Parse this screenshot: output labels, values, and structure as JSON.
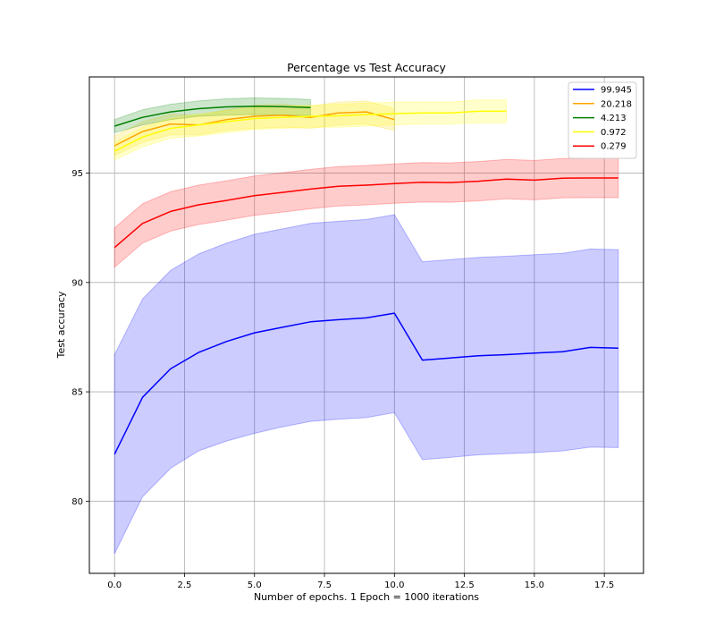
{
  "chart_data": {
    "type": "line",
    "title": "Percentage vs Test Accuracy",
    "xlabel": "Number of epochs. 1 Epoch = 1000 iterations",
    "ylabel": "Test accuracy",
    "xlim": [
      -0.9,
      18.9
    ],
    "ylim": [
      76.7,
      99.4
    ],
    "xticks": [
      0,
      2.5,
      5,
      7.5,
      10,
      12.5,
      15,
      17.5
    ],
    "xtick_labels": [
      "0.0",
      "2.5",
      "5.0",
      "7.5",
      "10.0",
      "12.5",
      "15.0",
      "17.5"
    ],
    "yticks": [
      80,
      85,
      90,
      95
    ],
    "ytick_labels": [
      "80",
      "85",
      "90",
      "95"
    ],
    "grid": true,
    "legend_position": "top-right",
    "series": [
      {
        "name": "99.945",
        "color": "#0000ff",
        "band_color": "#0000ff",
        "x": [
          0,
          1,
          2,
          3,
          4,
          5,
          6,
          7,
          8,
          9,
          10,
          11,
          12,
          13,
          14,
          15,
          16,
          17,
          18
        ],
        "values": [
          82.15,
          84.75,
          86.05,
          86.8,
          87.3,
          87.7,
          87.95,
          88.2,
          88.3,
          88.38,
          88.6,
          86.45,
          86.55,
          86.65,
          86.7,
          86.77,
          86.83,
          87.03,
          87.0
        ],
        "lower": [
          77.6,
          80.2,
          81.5,
          82.3,
          82.75,
          83.1,
          83.4,
          83.65,
          83.75,
          83.82,
          84.05,
          81.9,
          82.0,
          82.12,
          82.17,
          82.22,
          82.3,
          82.47,
          82.45
        ],
        "upper": [
          86.7,
          89.25,
          90.55,
          91.3,
          91.8,
          92.2,
          92.45,
          92.7,
          92.8,
          92.88,
          93.1,
          90.95,
          91.05,
          91.15,
          91.2,
          91.27,
          91.33,
          91.53,
          91.5
        ]
      },
      {
        "name": "20.218",
        "color": "#ffa500",
        "band_color": "#ffd700",
        "x": [
          0,
          1,
          2,
          3,
          4,
          5,
          6,
          7,
          8,
          9,
          10
        ],
        "values": [
          96.25,
          96.9,
          97.25,
          97.2,
          97.45,
          97.6,
          97.65,
          97.55,
          97.75,
          97.8,
          97.45
        ],
        "lower": [
          95.8,
          96.4,
          96.75,
          96.75,
          96.95,
          97.05,
          97.1,
          97.05,
          97.2,
          97.25,
          96.95
        ],
        "upper": [
          96.7,
          97.35,
          97.7,
          97.65,
          97.9,
          98.1,
          98.15,
          98.05,
          98.25,
          98.3,
          97.95
        ]
      },
      {
        "name": "4.213",
        "color": "#008000",
        "band_color": "#008000",
        "x": [
          0,
          1,
          2,
          3,
          4,
          5,
          6,
          7
        ],
        "values": [
          97.15,
          97.55,
          97.8,
          97.95,
          98.03,
          98.06,
          98.04,
          98.0
        ],
        "lower": [
          96.85,
          97.2,
          97.45,
          97.6,
          97.65,
          97.68,
          97.66,
          97.63
        ],
        "upper": [
          97.45,
          97.9,
          98.15,
          98.3,
          98.4,
          98.44,
          98.42,
          98.37
        ]
      },
      {
        "name": "0.972",
        "color": "#ffff00",
        "band_color": "#ffff00",
        "x": [
          0,
          1,
          2,
          3,
          4,
          5,
          6,
          7,
          8,
          9,
          10,
          11,
          12,
          13,
          14
        ],
        "values": [
          96.0,
          96.65,
          97.05,
          97.2,
          97.35,
          97.5,
          97.55,
          97.6,
          97.62,
          97.68,
          97.72,
          97.75,
          97.75,
          97.83,
          97.83
        ],
        "lower": [
          95.6,
          96.2,
          96.6,
          96.7,
          96.85,
          97.0,
          97.05,
          97.1,
          97.1,
          97.15,
          97.2,
          97.25,
          97.25,
          97.3,
          97.3
        ],
        "upper": [
          96.4,
          97.1,
          97.5,
          97.7,
          97.85,
          98.0,
          98.05,
          98.1,
          98.15,
          98.2,
          98.25,
          98.25,
          98.25,
          98.35,
          98.35
        ]
      },
      {
        "name": "0.279",
        "color": "#ff0000",
        "band_color": "#ff0000",
        "x": [
          0,
          1,
          2,
          3,
          4,
          5,
          6,
          7,
          8,
          9,
          10,
          11,
          12,
          13,
          14,
          15,
          16,
          17,
          18
        ],
        "values": [
          91.6,
          92.7,
          93.25,
          93.55,
          93.75,
          93.97,
          94.12,
          94.27,
          94.4,
          94.45,
          94.52,
          94.58,
          94.57,
          94.63,
          94.73,
          94.68,
          94.77,
          94.78,
          94.78
        ],
        "lower": [
          90.7,
          91.8,
          92.35,
          92.65,
          92.85,
          93.07,
          93.22,
          93.37,
          93.5,
          93.55,
          93.62,
          93.68,
          93.67,
          93.73,
          93.83,
          93.78,
          93.87,
          93.88,
          93.88
        ],
        "upper": [
          92.5,
          93.6,
          94.15,
          94.45,
          94.65,
          94.87,
          95.02,
          95.17,
          95.3,
          95.35,
          95.42,
          95.48,
          95.47,
          95.53,
          95.63,
          95.58,
          95.67,
          95.68,
          95.68
        ]
      }
    ]
  }
}
